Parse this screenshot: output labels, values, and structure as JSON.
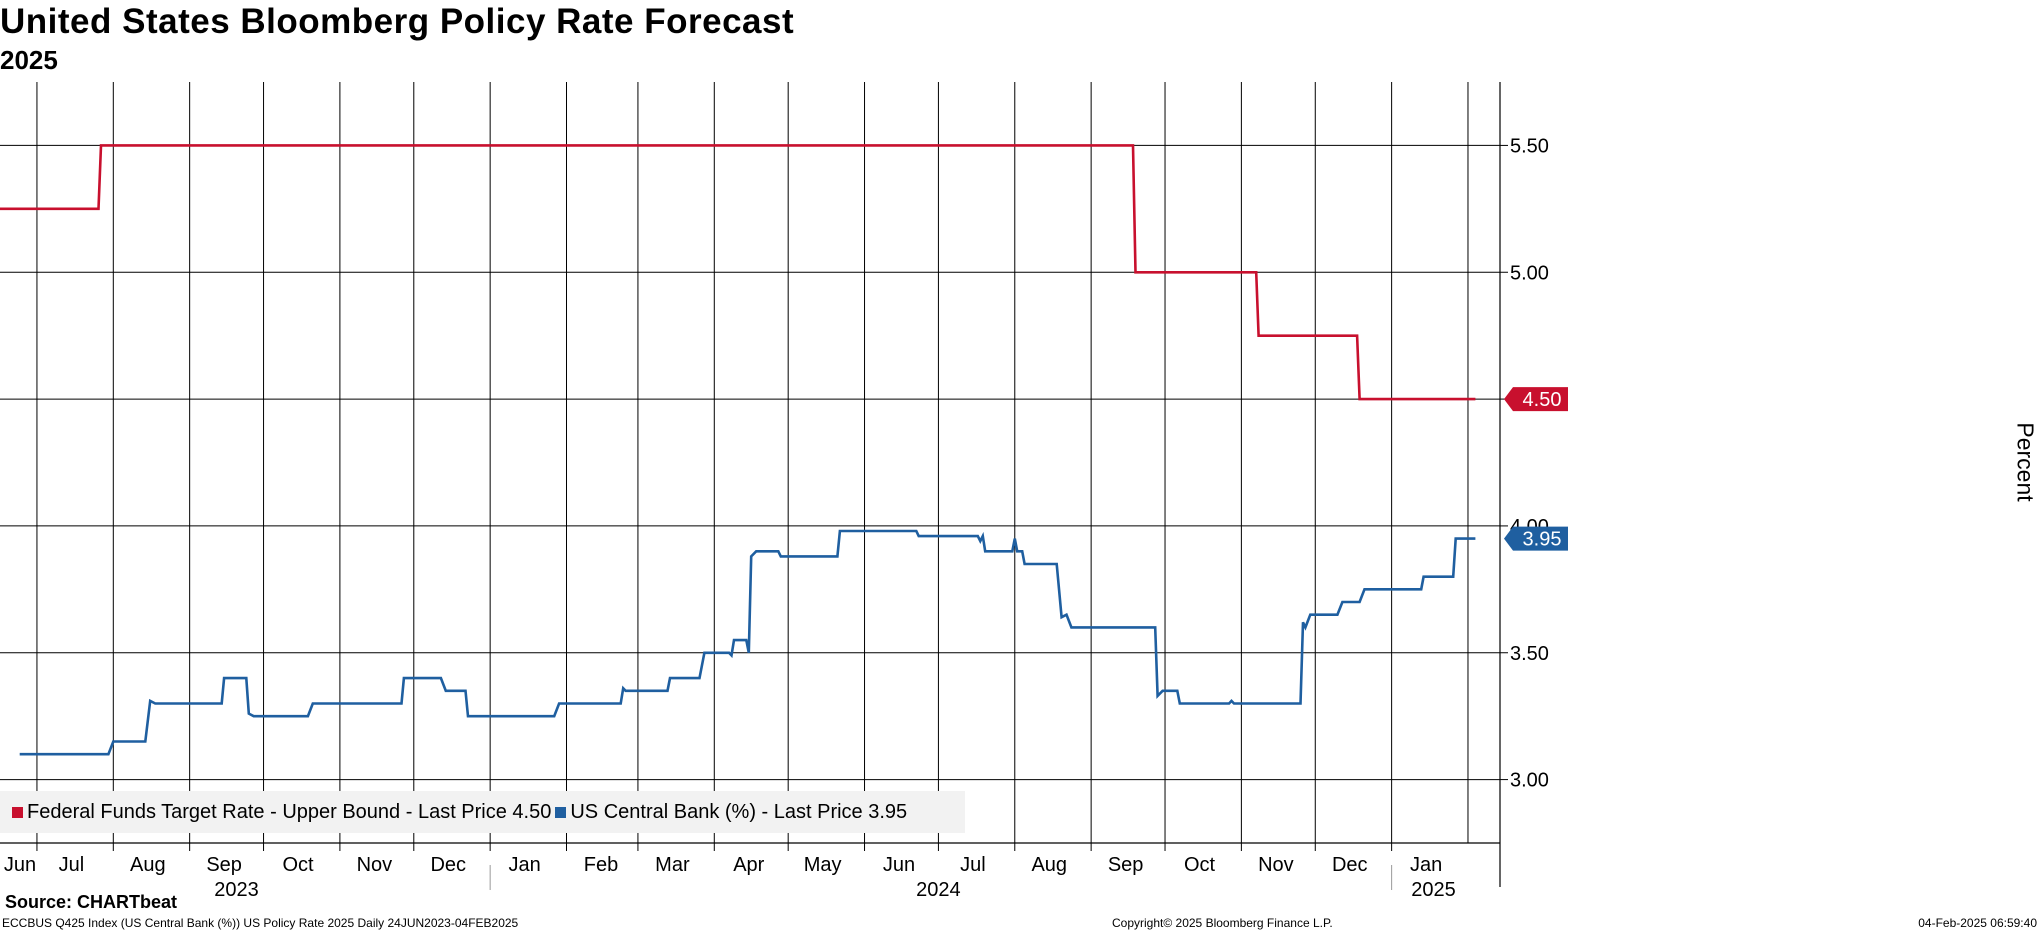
{
  "title": "United States Bloomberg Policy Rate Forecast",
  "subtitle": "2025",
  "source_text": "Source: CHARTbeat",
  "footer": {
    "left": "ECCBUS Q425 Index (US Central Bank (%)) US Policy Rate 2025  Daily 24JUN2023-04FEB2025",
    "center": "Copyright© 2025 Bloomberg Finance L.P.",
    "right": "04-Feb-2025 06:59:40"
  },
  "legend": [
    {
      "label": "Federal Funds Target Rate - Upper Bound - Last Price 4.50",
      "color": "#c8102e"
    },
    {
      "label": "US Central Bank (%) - Last Price 3.95",
      "color": "#1f5fa0"
    }
  ],
  "chart_data": {
    "type": "line",
    "title": "United States Bloomberg Policy Rate Forecast",
    "subtitle": "2025",
    "xlabel": "",
    "ylabel": "Percent",
    "x_range": [
      "2023-06-16",
      "2025-02-14"
    ],
    "ylim": [
      2.75,
      5.75
    ],
    "yticks": [
      "3.00",
      "3.50",
      "4.00",
      "4.50",
      "5.00",
      "5.50"
    ],
    "month_ticks": [
      {
        "date": "2023-06-15",
        "label": "Jun"
      },
      {
        "date": "2023-07-15",
        "label": "Jul"
      },
      {
        "date": "2023-08-15",
        "label": "Aug"
      },
      {
        "date": "2023-09-15",
        "label": "Sep"
      },
      {
        "date": "2023-10-15",
        "label": "Oct"
      },
      {
        "date": "2023-11-15",
        "label": "Nov"
      },
      {
        "date": "2023-12-15",
        "label": "Dec"
      },
      {
        "date": "2024-01-15",
        "label": "Jan"
      },
      {
        "date": "2024-02-15",
        "label": "Feb"
      },
      {
        "date": "2024-03-15",
        "label": "Mar"
      },
      {
        "date": "2024-04-15",
        "label": "Apr"
      },
      {
        "date": "2024-05-15",
        "label": "May"
      },
      {
        "date": "2024-06-15",
        "label": "Jun"
      },
      {
        "date": "2024-07-15",
        "label": "Jul"
      },
      {
        "date": "2024-08-15",
        "label": "Aug"
      },
      {
        "date": "2024-09-15",
        "label": "Sep"
      },
      {
        "date": "2024-10-15",
        "label": "Oct"
      },
      {
        "date": "2024-11-15",
        "label": "Nov"
      },
      {
        "date": "2024-12-15",
        "label": "Dec"
      },
      {
        "date": "2025-01-15",
        "label": "Jan"
      }
    ],
    "year_labels": [
      {
        "date": "2023-09-20",
        "label": "2023"
      },
      {
        "date": "2024-07-01",
        "label": "2024"
      },
      {
        "date": "2025-01-18",
        "label": "2025"
      }
    ],
    "year_separators": [
      "2024-01-01",
      "2025-01-01"
    ],
    "grid": true,
    "legend_position": "bottom-left",
    "series": [
      {
        "name": "Federal Funds Target Rate - Upper Bound",
        "color": "#c8102e",
        "last_value": 4.5,
        "last_label": "4.50",
        "points": [
          [
            "2023-06-16",
            5.25
          ],
          [
            "2023-07-26",
            5.25
          ],
          [
            "2023-07-27",
            5.5
          ],
          [
            "2024-09-18",
            5.5
          ],
          [
            "2024-09-19",
            5.0
          ],
          [
            "2024-11-07",
            5.0
          ],
          [
            "2024-11-08",
            4.75
          ],
          [
            "2024-12-18",
            4.75
          ],
          [
            "2024-12-19",
            4.5
          ],
          [
            "2025-02-04",
            4.5
          ]
        ]
      },
      {
        "name": "US Central Bank (%)",
        "color": "#1f5fa0",
        "last_value": 3.95,
        "last_label": "3.95",
        "points": [
          [
            "2023-06-24",
            3.1
          ],
          [
            "2023-07-30",
            3.1
          ],
          [
            "2023-08-01",
            3.15
          ],
          [
            "2023-08-14",
            3.15
          ],
          [
            "2023-08-16",
            3.31
          ],
          [
            "2023-08-18",
            3.3
          ],
          [
            "2023-09-14",
            3.3
          ],
          [
            "2023-09-15",
            3.4
          ],
          [
            "2023-09-24",
            3.4
          ],
          [
            "2023-09-25",
            3.26
          ],
          [
            "2023-09-27",
            3.25
          ],
          [
            "2023-10-19",
            3.25
          ],
          [
            "2023-10-21",
            3.3
          ],
          [
            "2023-11-26",
            3.3
          ],
          [
            "2023-11-27",
            3.4
          ],
          [
            "2023-12-12",
            3.4
          ],
          [
            "2023-12-14",
            3.35
          ],
          [
            "2023-12-22",
            3.35
          ],
          [
            "2023-12-23",
            3.25
          ],
          [
            "2024-01-27",
            3.25
          ],
          [
            "2024-01-29",
            3.3
          ],
          [
            "2024-02-23",
            3.3
          ],
          [
            "2024-02-24",
            3.36
          ],
          [
            "2024-02-25",
            3.35
          ],
          [
            "2024-03-13",
            3.35
          ],
          [
            "2024-03-14",
            3.4
          ],
          [
            "2024-03-26",
            3.4
          ],
          [
            "2024-03-28",
            3.5
          ],
          [
            "2024-04-07",
            3.5
          ],
          [
            "2024-04-08",
            3.49
          ],
          [
            "2024-04-09",
            3.55
          ],
          [
            "2024-04-14",
            3.55
          ],
          [
            "2024-04-15",
            3.5
          ],
          [
            "2024-04-16",
            3.88
          ],
          [
            "2024-04-18",
            3.9
          ],
          [
            "2024-04-27",
            3.9
          ],
          [
            "2024-04-28",
            3.88
          ],
          [
            "2024-05-21",
            3.88
          ],
          [
            "2024-05-22",
            3.98
          ],
          [
            "2024-06-22",
            3.98
          ],
          [
            "2024-06-23",
            3.96
          ],
          [
            "2024-07-17",
            3.96
          ],
          [
            "2024-07-18",
            3.94
          ],
          [
            "2024-07-19",
            3.96
          ],
          [
            "2024-07-20",
            3.9
          ],
          [
            "2024-07-31",
            3.9
          ],
          [
            "2024-08-01",
            3.95
          ],
          [
            "2024-08-02",
            3.9
          ],
          [
            "2024-08-04",
            3.9
          ],
          [
            "2024-08-05",
            3.85
          ],
          [
            "2024-08-18",
            3.85
          ],
          [
            "2024-08-20",
            3.64
          ],
          [
            "2024-08-22",
            3.65
          ],
          [
            "2024-08-24",
            3.6
          ],
          [
            "2024-09-27",
            3.6
          ],
          [
            "2024-09-28",
            3.33
          ],
          [
            "2024-09-30",
            3.35
          ],
          [
            "2024-10-06",
            3.35
          ],
          [
            "2024-10-07",
            3.3
          ],
          [
            "2024-10-27",
            3.3
          ],
          [
            "2024-10-28",
            3.31
          ],
          [
            "2024-10-29",
            3.3
          ],
          [
            "2024-11-25",
            3.3
          ],
          [
            "2024-11-26",
            3.62
          ],
          [
            "2024-11-27",
            3.6
          ],
          [
            "2024-11-29",
            3.65
          ],
          [
            "2024-12-10",
            3.65
          ],
          [
            "2024-12-12",
            3.7
          ],
          [
            "2024-12-19",
            3.7
          ],
          [
            "2024-12-21",
            3.75
          ],
          [
            "2025-01-13",
            3.75
          ],
          [
            "2025-01-14",
            3.8
          ],
          [
            "2025-01-26",
            3.8
          ],
          [
            "2025-01-27",
            3.95
          ],
          [
            "2025-02-04",
            3.95
          ]
        ]
      }
    ]
  }
}
